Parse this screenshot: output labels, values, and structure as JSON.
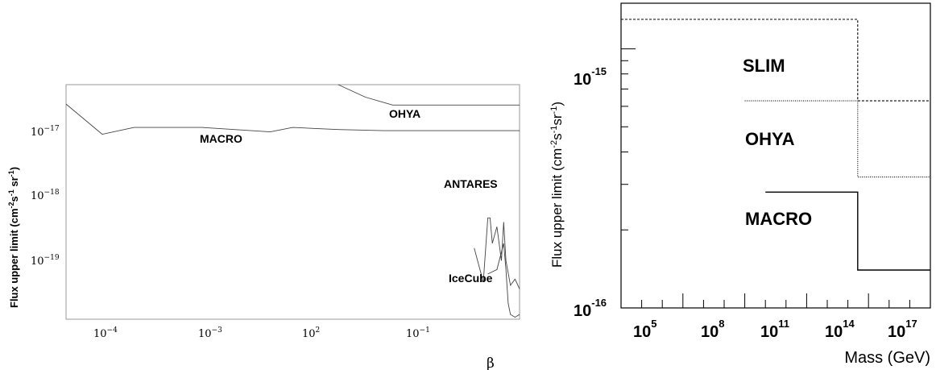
{
  "chart_data": [
    {
      "type": "line",
      "ylabel": "Flux upper limit (cm",
      "ylabel_sup1": "-2",
      "ylabel_mid": "s",
      "ylabel_sup2": "-1",
      "ylabel_mid2": " sr",
      "ylabel_sup3": "-1",
      "ylabel_end": ")",
      "xlabel": "β",
      "yscale": "log",
      "ylim": [
        3e-20,
        6e-17
      ],
      "xticks": [
        {
          "base": "10",
          "exp": "−4"
        },
        {
          "base": "10",
          "exp": "−3"
        },
        {
          "base": "10",
          "exp": "2"
        },
        {
          "base": "10",
          "exp": "−1"
        }
      ],
      "yticks": [
        {
          "base": "10",
          "exp": "−17",
          "value": 1e-17
        },
        {
          "base": "10",
          "exp": "−18",
          "value": 1e-18
        },
        {
          "base": "10",
          "exp": "−19",
          "value": 1e-19
        }
      ],
      "annotations": [
        "MACRO",
        "OHYA",
        "ANTARES",
        "IceCube"
      ],
      "series": [
        {
          "name": "MACRO",
          "x": [
            0.0,
            0.08,
            0.15,
            0.3,
            0.45,
            0.5,
            0.55,
            0.6,
            0.7,
            0.8,
            0.9,
            1.0
          ],
          "y": [
            3.2e-17,
            1.2e-17,
            1.5e-17,
            1.5e-17,
            1.3e-17,
            1.5e-17,
            1.45e-17,
            1.4e-17,
            1.35e-17,
            1.35e-17,
            1.35e-17,
            1.35e-17
          ]
        },
        {
          "name": "OHYA",
          "x": [
            0.6,
            0.66,
            0.72,
            0.8,
            0.9,
            1.0
          ],
          "y": [
            6e-17,
            4e-17,
            3.1e-17,
            3.1e-17,
            3.1e-17,
            3.1e-17
          ]
        },
        {
          "name": "ANTARES",
          "x": [
            0.9,
            0.92,
            0.93,
            0.935,
            0.94,
            0.95,
            0.96,
            0.965,
            0.97,
            0.98,
            0.99,
            1.0
          ],
          "y": [
            3e-19,
            1e-19,
            8e-19,
            8e-19,
            3.5e-19,
            6e-19,
            2e-19,
            7e-19,
            2e-19,
            9e-20,
            1.1e-19,
            8e-20
          ]
        },
        {
          "name": "IceCube",
          "x": [
            0.93,
            0.95,
            0.965,
            0.97,
            0.975,
            0.98,
            0.99,
            1.0
          ],
          "y": [
            1.3e-19,
            1.5e-19,
            3.5e-19,
            1.5e-19,
            5e-20,
            3.5e-20,
            3.2e-20,
            3.5e-20
          ]
        }
      ]
    },
    {
      "type": "line",
      "ylabel": "Flux upper limit (cm",
      "ylabel_sup1": "-2",
      "ylabel_mid": "s",
      "ylabel_sup2": "-1",
      "ylabel_mid2": "sr",
      "ylabel_sup3": "-1",
      "ylabel_end": ")",
      "xlabel": "Mass (GeV)",
      "xscale": "log",
      "yscale": "log",
      "xlim": [
        100,
        1e+17
      ],
      "ylim": [
        1e-16,
        1.5e-15
      ],
      "xticks": [
        {
          "base": "10",
          "exp": "5",
          "value": 100000.0
        },
        {
          "base": "10",
          "exp": "8",
          "value": 100000000.0
        },
        {
          "base": "10",
          "exp": "11",
          "value": 100000000000.0
        },
        {
          "base": "10",
          "exp": "14",
          "value": 100000000000000.0
        },
        {
          "base": "10",
          "exp": "17",
          "value": 1e+17
        }
      ],
      "yticks": [
        {
          "base": "10",
          "exp": "-15",
          "value": 1e-15
        },
        {
          "base": "10",
          "exp": "-16",
          "value": 1e-16
        }
      ],
      "annotations": [
        "SLIM",
        "OHYA",
        "MACRO"
      ],
      "series": [
        {
          "name": "SLIM",
          "style": "dashed",
          "x": [
            100,
            30000000000000.0,
            30000000000000.0,
            1e+17
          ],
          "y": [
            1.3e-15,
            1.3e-15,
            6.3e-16,
            6.3e-16
          ]
        },
        {
          "name": "OHYA",
          "style": "dotted",
          "x": [
            100000000.0,
            30000000000000.0,
            30000000000000.0,
            1e+17
          ],
          "y": [
            6.3e-16,
            6.3e-16,
            3.2e-16,
            3.2e-16
          ]
        },
        {
          "name": "MACRO",
          "style": "solid",
          "x": [
            1000000000.0,
            30000000000000.0,
            30000000000000.0,
            1e+17
          ],
          "y": [
            2.8e-16,
            2.8e-16,
            1.4e-16,
            1.4e-16
          ]
        }
      ]
    }
  ]
}
